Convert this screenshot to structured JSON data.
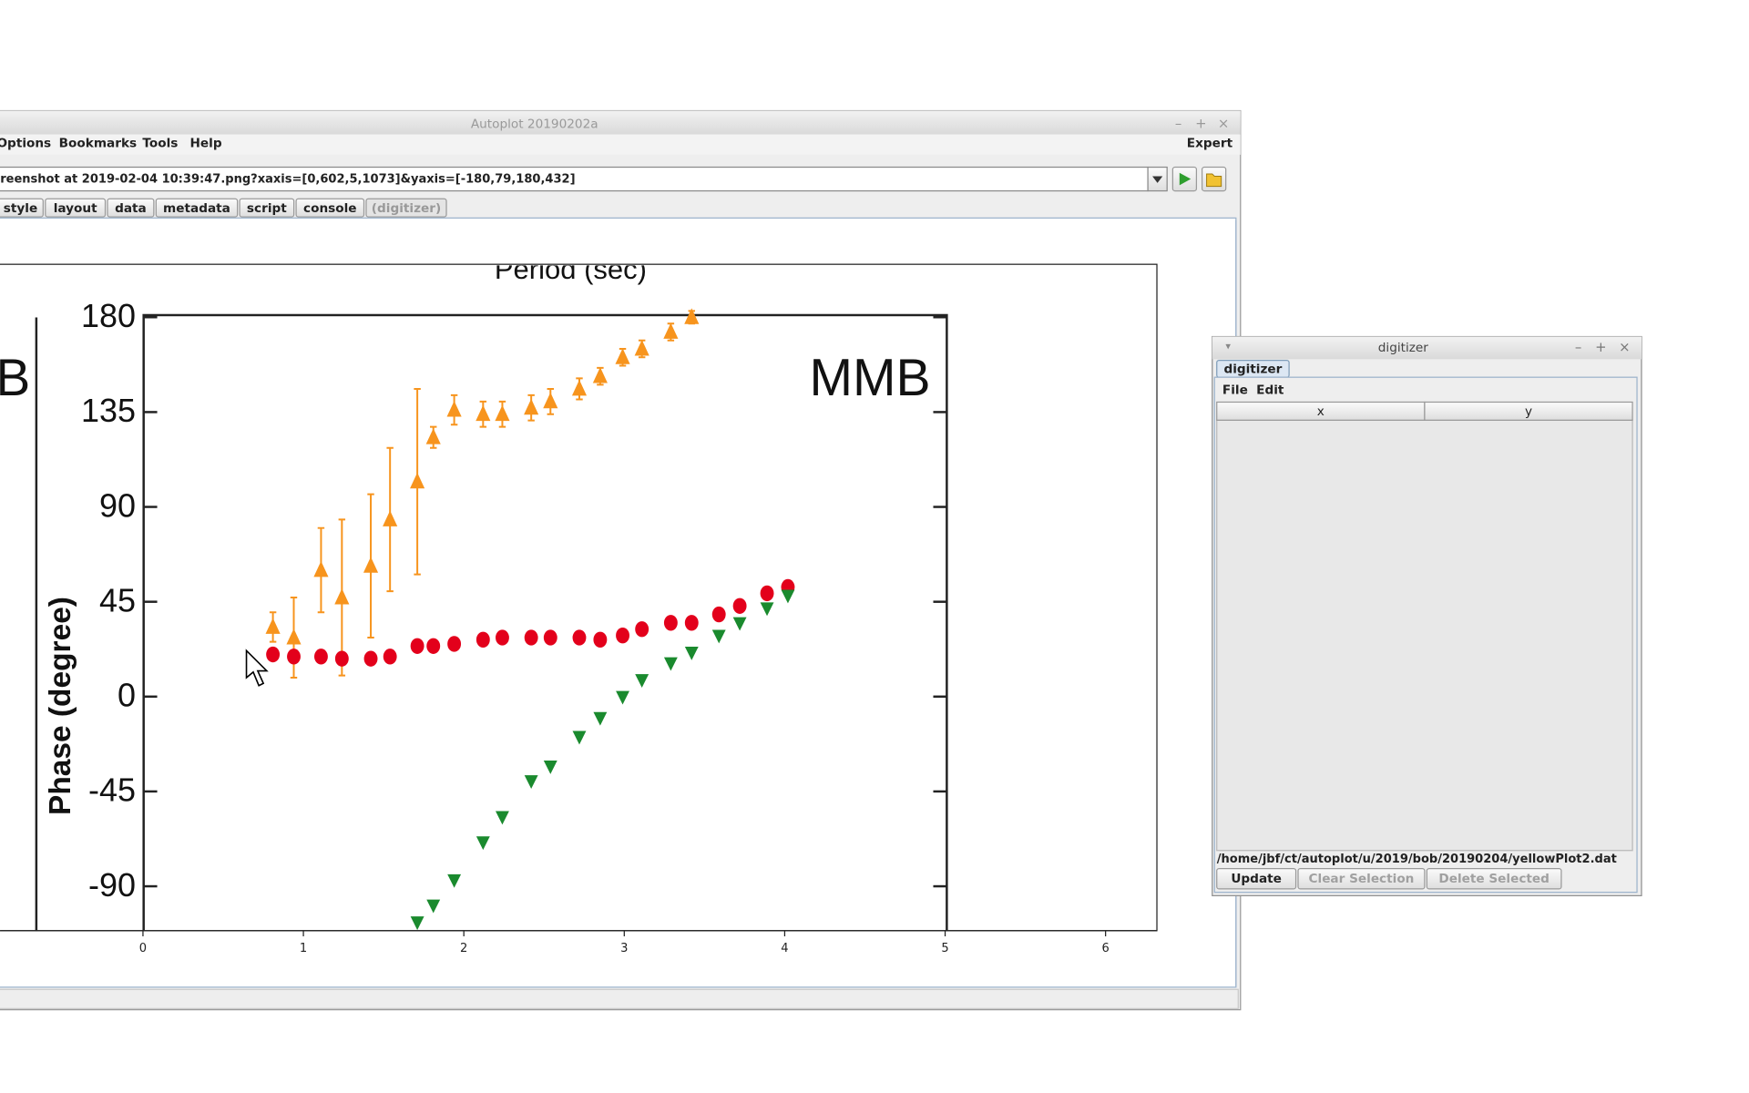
{
  "autoplot_window": {
    "title": "Autoplot 20190202a",
    "menus": [
      "Options",
      "Bookmarks",
      "Tools",
      "Help"
    ],
    "expert": "Expert",
    "url": "reenshot at 2019-02-04 10:39:47.png?xaxis=[0,602,5,1073]&yaxis=[-180,79,180,432]",
    "tabs": [
      "style",
      "layout",
      "data",
      "metadata",
      "script",
      "console",
      "(digitizer)"
    ]
  },
  "chart_data": {
    "type": "scatter",
    "title": "Period (sec)",
    "annotation": "MMB",
    "left_panel_label": "B",
    "y_label": "Phase (degree)",
    "x": [
      0.81,
      0.94,
      1.11,
      1.24,
      1.42,
      1.54,
      1.71,
      1.81,
      1.94,
      2.12,
      2.24,
      2.42,
      2.54,
      2.72,
      2.85,
      2.99,
      3.11,
      3.29,
      3.42,
      3.59,
      3.72,
      3.89,
      4.02
    ],
    "xlim": [
      -0.89,
      6.32
    ],
    "xticks": [
      0,
      1,
      2,
      3,
      4,
      5,
      6
    ],
    "ylim": [
      -110,
      181
    ],
    "yticks": [
      180,
      135,
      90,
      45,
      0,
      -45,
      -90
    ],
    "series": [
      {
        "color": "#f7941d",
        "marker": "triangle-up",
        "values": [
          33,
          28,
          60,
          47,
          62,
          84,
          102,
          123,
          136,
          134,
          134,
          137,
          140,
          146,
          152,
          161,
          165,
          173,
          180,
          null,
          null,
          null,
          null
        ],
        "errors": [
          7,
          19,
          20,
          37,
          34,
          34,
          44,
          5,
          7,
          6,
          6,
          6,
          6,
          5,
          4,
          4,
          4,
          4,
          3,
          null,
          null,
          null,
          null
        ]
      },
      {
        "color": "#e3001b",
        "marker": "circle",
        "values": [
          20,
          19,
          19,
          18,
          18,
          19,
          24,
          24,
          25,
          27,
          28,
          28,
          28,
          28,
          27,
          29,
          32,
          35,
          35,
          39,
          43,
          49,
          52
        ]
      },
      {
        "color": "#1a8a2e",
        "marker": "triangle-down",
        "values": [
          null,
          null,
          null,
          null,
          null,
          null,
          -107,
          -99,
          -87,
          -69,
          -57,
          -40,
          -33,
          -19,
          -10,
          0,
          8,
          16,
          21,
          29,
          35,
          42,
          48
        ]
      }
    ]
  },
  "digitizer_window": {
    "title": "digitizer",
    "tab": "digitizer",
    "menus": [
      "File",
      "Edit"
    ],
    "columns": [
      "x",
      "y"
    ],
    "file_path": "/home/jbf/ct/autoplot/u/2019/bob/20190204/yellowPlot2.dat",
    "buttons": [
      "Update",
      "Clear Selection",
      "Delete Selected"
    ]
  }
}
